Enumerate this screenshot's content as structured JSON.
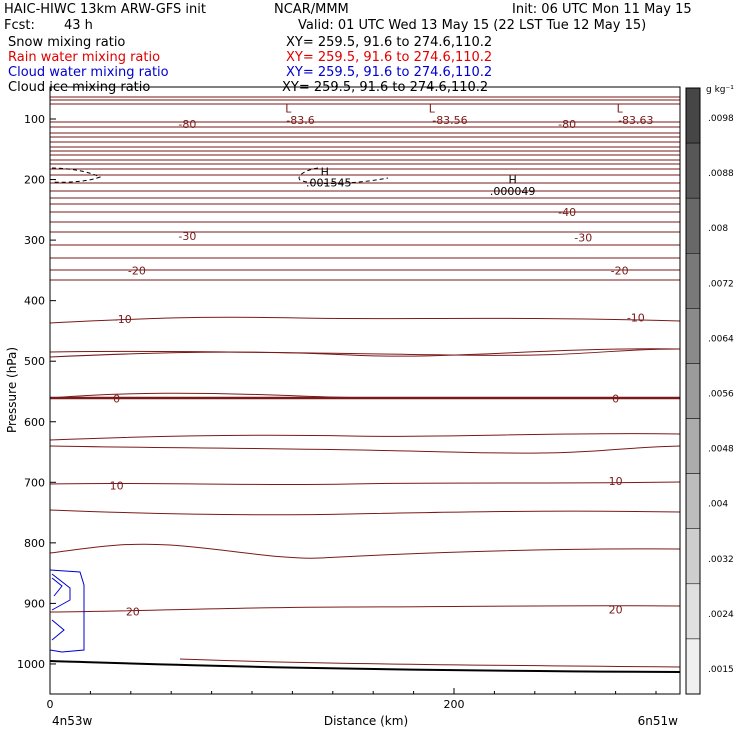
{
  "header": {
    "left_title": "HAIC-HIWC 13km ARW-GFS init",
    "center_title": "NCAR/MMM",
    "init": "Init: 06 UTC Mon 11 May 15",
    "fcst_label": "Fcst:",
    "fcst_value": "43 h",
    "valid": "Valid: 01 UTC Wed 13 May 15 (22 LST Tue 12 May 15)"
  },
  "fields": [
    {
      "name": "Snow mixing ratio",
      "xy": "XY= 259.5, 91.6 to 274.6,110.2",
      "color": "#000000"
    },
    {
      "name": "Rain water mixing ratio",
      "xy": "XY= 259.5, 91.6 to 274.6,110.2",
      "color": "#e00000"
    },
    {
      "name": "Cloud water mixing ratio",
      "xy": "XY= 259.5, 91.6 to 274.6,110.2",
      "color": "#0000d0"
    },
    {
      "name": "Cloud ice mixing ratio",
      "xy": "XY= 259.5, 91.6 to 274.6,110.2",
      "color": "#000000"
    }
  ],
  "chart_data": {
    "type": "contour",
    "title": "",
    "xlabel": "Distance (km)",
    "ylabel": "Pressure (hPa)",
    "x_ticks": [
      0,
      200
    ],
    "x_start_label": "4n53w",
    "x_end_label": "6n51w",
    "xlim": [
      0,
      312
    ],
    "y_ticks": [
      100,
      200,
      300,
      400,
      500,
      600,
      700,
      800,
      900,
      1000
    ],
    "ylim": [
      1050,
      50
    ],
    "temperature_contours": [
      {
        "label": "-80",
        "x": 68,
        "p": 108
      },
      {
        "label": "-83.6",
        "x": 124,
        "p": 102
      },
      {
        "label": "-83.56",
        "x": 198,
        "p": 102
      },
      {
        "label": "-80",
        "x": 256,
        "p": 108
      },
      {
        "label": "-83.63",
        "x": 290,
        "p": 102
      },
      {
        "label": "-40",
        "x": 256,
        "p": 254
      },
      {
        "label": "-30",
        "x": 68,
        "p": 293
      },
      {
        "label": "-30",
        "x": 264,
        "p": 296
      },
      {
        "label": "-20",
        "x": 43,
        "p": 350
      },
      {
        "label": "-20",
        "x": 282,
        "p": 350
      },
      {
        "label": "-10",
        "x": 36,
        "p": 430
      },
      {
        "label": "-10",
        "x": 290,
        "p": 428
      },
      {
        "label": "0",
        "x": 33,
        "p": 562
      },
      {
        "label": "0",
        "x": 280,
        "p": 562
      },
      {
        "label": "10",
        "x": 33,
        "p": 705
      },
      {
        "label": "10",
        "x": 280,
        "p": 698
      },
      {
        "label": "20",
        "x": 41,
        "p": 913
      },
      {
        "label": "20",
        "x": 280,
        "p": 910
      }
    ],
    "extrema": [
      {
        "type": "L",
        "x": 118,
        "p": 83
      },
      {
        "type": "L",
        "x": 189,
        "p": 83
      },
      {
        "type": "L",
        "x": 282,
        "p": 83
      },
      {
        "type": "H",
        "x": 136,
        "p": 187
      },
      {
        "type": "H",
        "x": 229,
        "p": 200
      }
    ],
    "extrema_values": [
      {
        "label": ".001545",
        "x": 138,
        "p": 205
      },
      {
        "label": ".000049",
        "x": 229,
        "p": 219
      }
    ],
    "colorbar": {
      "unit": "g kg⁻¹",
      "labels": [
        ".0098",
        ".0088",
        ".008",
        ".0072",
        ".0064",
        ".0056",
        ".0048",
        ".004",
        ".0032",
        ".0024",
        ".0015"
      ]
    }
  }
}
